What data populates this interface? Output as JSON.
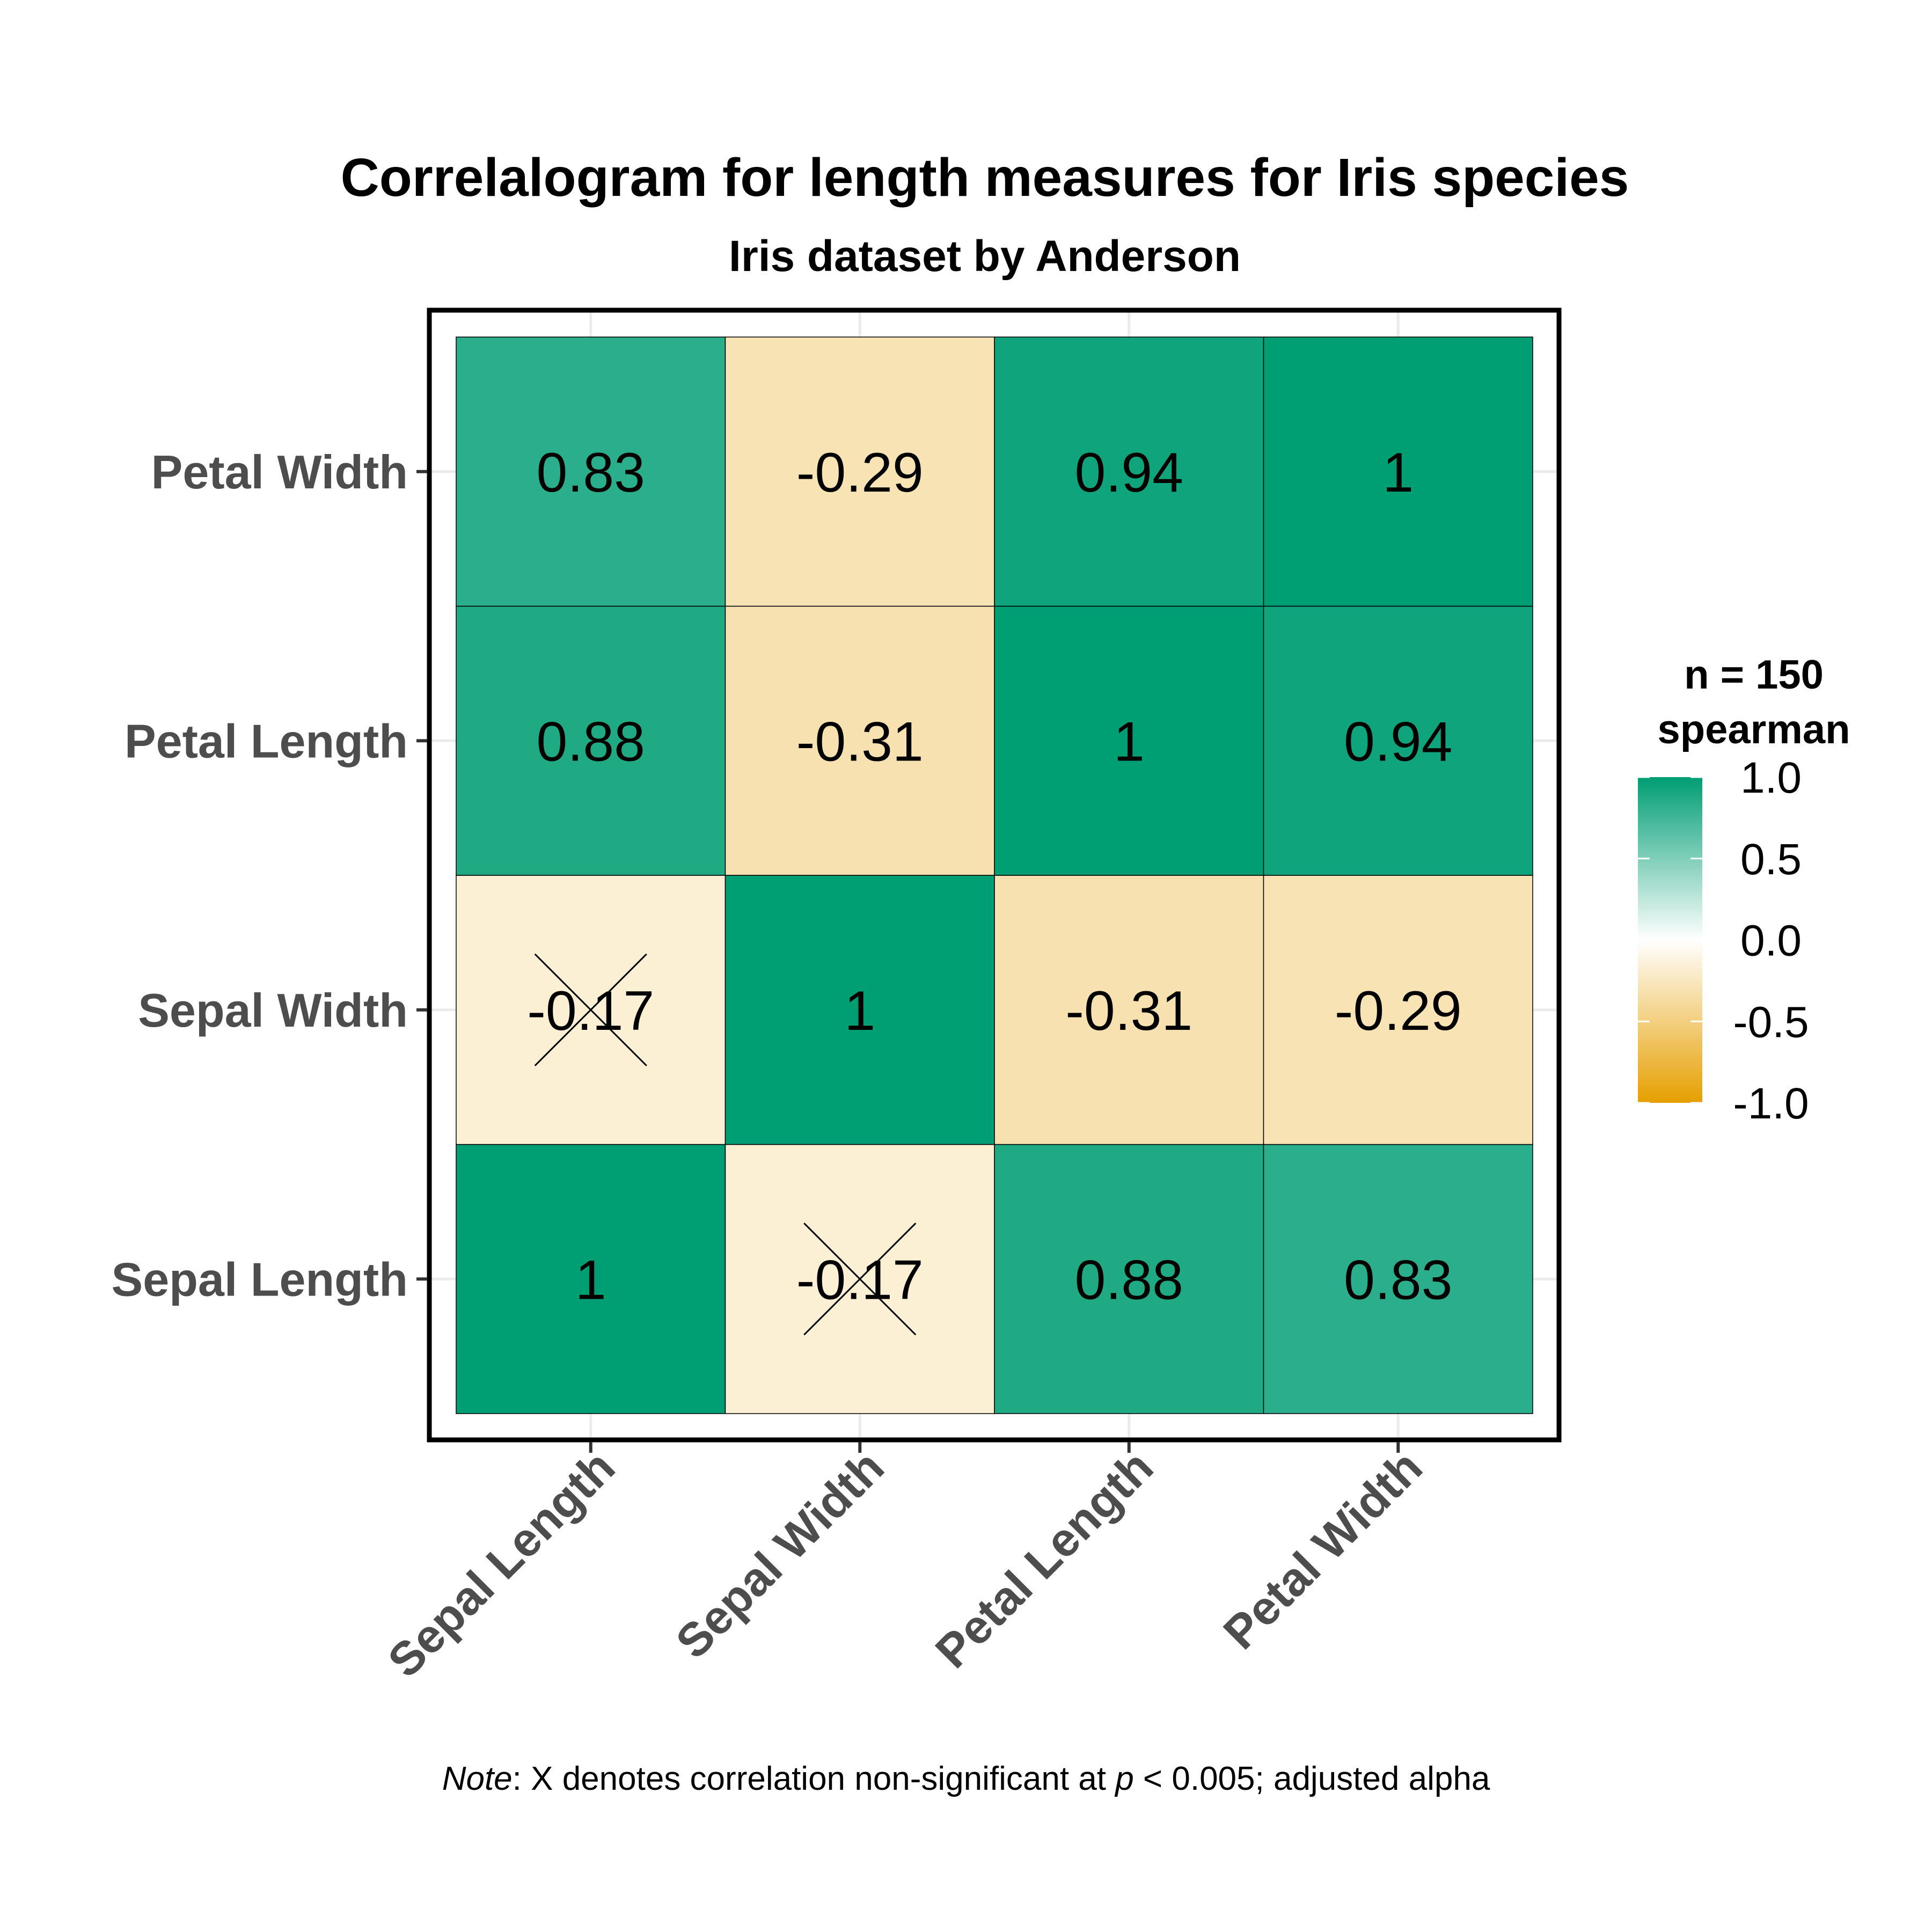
{
  "chart_data": {
    "type": "heatmap",
    "title": "Correlalogram for length measures for Iris species",
    "subtitle": "Iris dataset by Anderson",
    "x_categories": [
      "Sepal Length",
      "Sepal Width",
      "Petal Length",
      "Petal Width"
    ],
    "y_categories": [
      "Sepal Length",
      "Sepal Width",
      "Petal Length",
      "Petal Width"
    ],
    "cells": [
      {
        "x": "Sepal Length",
        "y": "Sepal Length",
        "value": 1,
        "label": "1",
        "non_significant": false
      },
      {
        "x": "Sepal Width",
        "y": "Sepal Length",
        "value": -0.17,
        "label": "-0.17",
        "non_significant": true
      },
      {
        "x": "Petal Length",
        "y": "Sepal Length",
        "value": 0.88,
        "label": "0.88",
        "non_significant": false
      },
      {
        "x": "Petal Width",
        "y": "Sepal Length",
        "value": 0.83,
        "label": "0.83",
        "non_significant": false
      },
      {
        "x": "Sepal Length",
        "y": "Sepal Width",
        "value": -0.17,
        "label": "-0.17",
        "non_significant": true
      },
      {
        "x": "Sepal Width",
        "y": "Sepal Width",
        "value": 1,
        "label": "1",
        "non_significant": false
      },
      {
        "x": "Petal Length",
        "y": "Sepal Width",
        "value": -0.31,
        "label": "-0.31",
        "non_significant": false
      },
      {
        "x": "Petal Width",
        "y": "Sepal Width",
        "value": -0.29,
        "label": "-0.29",
        "non_significant": false
      },
      {
        "x": "Sepal Length",
        "y": "Petal Length",
        "value": 0.88,
        "label": "0.88",
        "non_significant": false
      },
      {
        "x": "Sepal Width",
        "y": "Petal Length",
        "value": -0.31,
        "label": "-0.31",
        "non_significant": false
      },
      {
        "x": "Petal Length",
        "y": "Petal Length",
        "value": 1,
        "label": "1",
        "non_significant": false
      },
      {
        "x": "Petal Width",
        "y": "Petal Length",
        "value": 0.94,
        "label": "0.94",
        "non_significant": false
      },
      {
        "x": "Sepal Length",
        "y": "Petal Width",
        "value": 0.83,
        "label": "0.83",
        "non_significant": false
      },
      {
        "x": "Sepal Width",
        "y": "Petal Width",
        "value": -0.29,
        "label": "-0.29",
        "non_significant": false
      },
      {
        "x": "Petal Length",
        "y": "Petal Width",
        "value": 0.94,
        "label": "0.94",
        "non_significant": false
      },
      {
        "x": "Petal Width",
        "y": "Petal Width",
        "value": 1,
        "label": "1",
        "non_significant": false
      }
    ],
    "color_scale": {
      "min": -1,
      "max": 1,
      "low_color": "#E69F00",
      "mid_color": "#FFFFFF",
      "high_color": "#009E73"
    },
    "legend": {
      "title_lines": [
        "n = 150",
        "spearman"
      ],
      "ticks": [
        {
          "value": 1.0,
          "label": "1.0"
        },
        {
          "value": 0.5,
          "label": "0.5"
        },
        {
          "value": 0.0,
          "label": "0.0"
        },
        {
          "value": -0.5,
          "label": "-0.5"
        },
        {
          "value": -1.0,
          "label": "-1.0"
        }
      ],
      "placement": "right"
    },
    "caption": {
      "note_label": "Note",
      "text_before_p": ": X denotes correlation non-significant at ",
      "p_symbol": "p",
      "text_after_p": " < 0.005; adjusted alpha"
    },
    "grid": true
  }
}
